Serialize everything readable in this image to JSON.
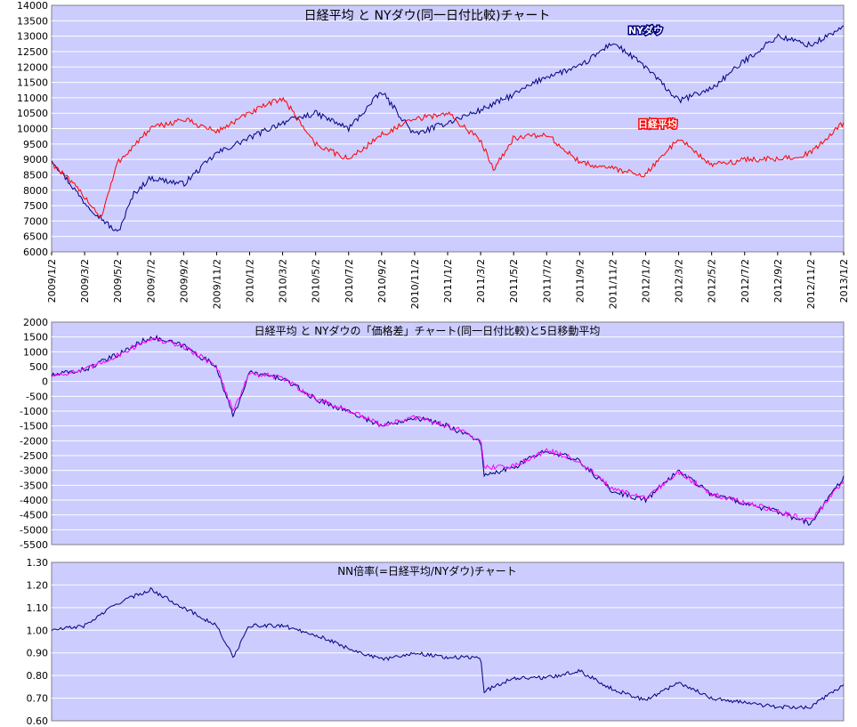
{
  "colors": {
    "plot_bg": "#ccccff",
    "grid": "#ffffff",
    "nikkei": "#ff0000",
    "dow": "#000080",
    "diff": "#000080",
    "ma5": "#ff00ff",
    "ratio": "#000080",
    "axis_text": "#000000"
  },
  "chart_data": [
    {
      "type": "line",
      "title": "日経平均 と NYダウ(同一日付比較)チャート",
      "x_tick_labels": [
        "2009/1/2",
        "2009/3/2",
        "2009/5/2",
        "2009/7/2",
        "2009/9/2",
        "2009/11/2",
        "2010/1/2",
        "2010/3/2",
        "2010/5/2",
        "2010/7/2",
        "2010/9/2",
        "2010/11/2",
        "2011/1/2",
        "2011/3/2",
        "2011/5/2",
        "2011/7/2",
        "2011/9/2",
        "2011/11/2",
        "2012/1/2",
        "2012/3/2",
        "2012/5/2",
        "2012/7/2",
        "2012/9/2",
        "2012/11/2",
        "2013/1/2"
      ],
      "y_ticks": [
        "6000",
        "6500",
        "7000",
        "7500",
        "8000",
        "8500",
        "9000",
        "9500",
        "10000",
        "10500",
        "11000",
        "11500",
        "12000",
        "12500",
        "13000",
        "13500",
        "14000"
      ],
      "ylim": [
        6000,
        14000
      ],
      "grid": true,
      "series": [
        {
          "name": "NYダウ",
          "color": "#000080",
          "x": [
            0,
            1,
            2,
            2.5,
            3,
            4,
            5,
            6,
            7,
            8,
            9,
            10,
            11,
            12,
            13,
            14,
            15,
            16,
            17,
            18,
            19,
            20,
            21,
            22,
            23,
            24
          ],
          "values": [
            9000,
            7600,
            6600,
            7900,
            8400,
            8200,
            9200,
            9700,
            10200,
            10500,
            10000,
            11200,
            9800,
            10200,
            10600,
            11100,
            11700,
            12000,
            12800,
            12000,
            10900,
            11300,
            12200,
            13000,
            12700,
            13300
          ]
        },
        {
          "name": "日経平均",
          "color": "#ff0000",
          "x": [
            0,
            1,
            1.5,
            2,
            3,
            4,
            5,
            6,
            7,
            8,
            9,
            10,
            11,
            12,
            13,
            13.4,
            14,
            15,
            16,
            17,
            18,
            19,
            20,
            21,
            22,
            23,
            24
          ],
          "values": [
            8900,
            7800,
            7100,
            8900,
            10000,
            10300,
            9900,
            10500,
            11000,
            9500,
            9000,
            9800,
            10300,
            10500,
            9600,
            8700,
            9700,
            9800,
            8900,
            8700,
            8500,
            9700,
            8800,
            9000,
            9000,
            9200,
            10200
          ]
        }
      ]
    },
    {
      "type": "line",
      "title": "日経平均 と NYダウの「価格差」チャート(同一日付比較)と5日移動平均",
      "y_ticks": [
        "-5500",
        "-5000",
        "-4500",
        "-4000",
        "-3500",
        "-3000",
        "-2500",
        "-2000",
        "-1500",
        "-1000",
        "-500",
        "0",
        "500",
        "1000",
        "1500",
        "2000"
      ],
      "ylim": [
        -5500,
        2000
      ],
      "grid": true,
      "series": [
        {
          "color": "#000080",
          "x": [
            0,
            1,
            2,
            3,
            4,
            5,
            5.5,
            6,
            7,
            8,
            9,
            10,
            11,
            12,
            13,
            13.1,
            14,
            15,
            16,
            17,
            18,
            19,
            20,
            21,
            22,
            23,
            24
          ],
          "values": [
            200,
            400,
            900,
            1500,
            1200,
            500,
            -1200,
            300,
            100,
            -600,
            -1000,
            -1500,
            -1200,
            -1500,
            -2000,
            -3200,
            -2900,
            -2300,
            -2700,
            -3700,
            -4000,
            -3000,
            -3800,
            -4100,
            -4400,
            -4800,
            -3200
          ]
        },
        {
          "color": "#ff00ff",
          "x": [
            0,
            1,
            2,
            3,
            4,
            5,
            5.5,
            6,
            7,
            8,
            9,
            10,
            11,
            12,
            13,
            13.1,
            14,
            15,
            16,
            17,
            18,
            19,
            20,
            21,
            22,
            23,
            24
          ],
          "values": [
            200,
            380,
            880,
            1450,
            1180,
            520,
            -1000,
            280,
            120,
            -580,
            -980,
            -1480,
            -1220,
            -1480,
            -1950,
            -2900,
            -2850,
            -2320,
            -2680,
            -3650,
            -3950,
            -3050,
            -3780,
            -4080,
            -4380,
            -4700,
            -3350
          ]
        }
      ]
    },
    {
      "type": "line",
      "title": "NN倍率(=日経平均/NYダウ)チャート",
      "y_ticks": [
        "0.60",
        "0.70",
        "0.80",
        "0.90",
        "1.00",
        "1.10",
        "1.20",
        "1.30"
      ],
      "ylim": [
        0.6,
        1.3
      ],
      "grid": true,
      "series": [
        {
          "color": "#000080",
          "x": [
            0,
            1,
            2,
            3,
            4,
            5,
            5.5,
            6,
            7,
            8,
            9,
            10,
            11,
            12,
            13,
            13.1,
            14,
            15,
            16,
            17,
            18,
            19,
            20,
            21,
            22,
            23,
            24
          ],
          "values": [
            1.0,
            1.02,
            1.12,
            1.18,
            1.1,
            1.02,
            0.88,
            1.02,
            1.02,
            0.98,
            0.92,
            0.87,
            0.9,
            0.88,
            0.88,
            0.73,
            0.79,
            0.79,
            0.82,
            0.74,
            0.69,
            0.77,
            0.7,
            0.68,
            0.66,
            0.66,
            0.76
          ]
        }
      ]
    }
  ]
}
